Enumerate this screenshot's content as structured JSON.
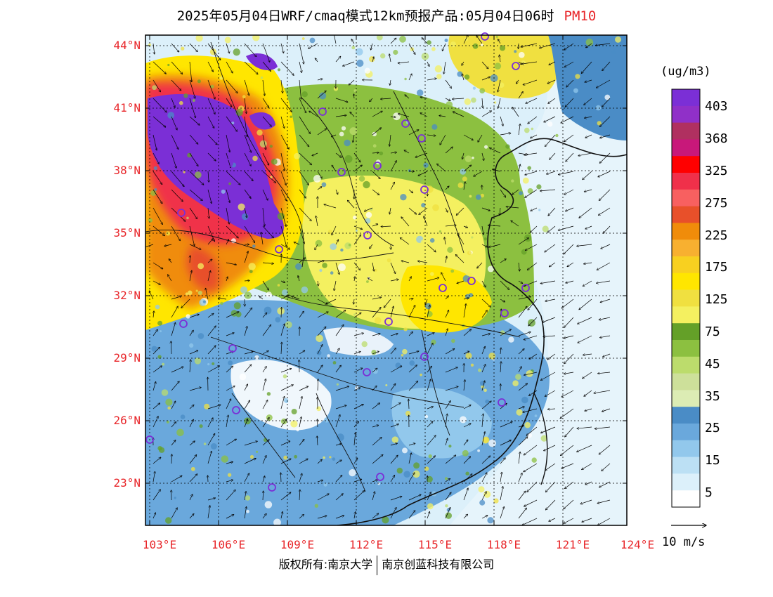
{
  "title": {
    "main": "2025年05月04日WRF/cmaq模式12km预报产品:05月04日06时",
    "pollutant": "PM10"
  },
  "map": {
    "lat_labels": [
      "44°N",
      "41°N",
      "38°N",
      "35°N",
      "32°N",
      "29°N",
      "26°N",
      "23°N"
    ],
    "lon_labels": [
      "103°E",
      "106°E",
      "109°E",
      "112°E",
      "115°E",
      "118°E",
      "121°E",
      "124°E"
    ],
    "label_color": "#e8262a"
  },
  "colorbar": {
    "unit": "(ug/m3)",
    "levels": [
      "403",
      "368",
      "325",
      "275",
      "225",
      "175",
      "125",
      "75",
      "45",
      "35",
      "25",
      "15",
      "5"
    ],
    "colors": [
      "#7b2fd6",
      "#9030c8",
      "#b03060",
      "#c8187a",
      "#ff0000",
      "#f0304a",
      "#f86060",
      "#e8502a",
      "#f08c0a",
      "#f8b030",
      "#f8d020",
      "#ffe600",
      "#f0e040",
      "#f4f060",
      "#64a028",
      "#8cc040",
      "#bcdc6c",
      "#cde09a",
      "#dcecb4",
      "#4a8cc6",
      "#6aa8dc",
      "#92c8ec",
      "#bce0f4",
      "#dcf0fa",
      "#ffffff"
    ]
  },
  "wind": {
    "label": "10 m/s"
  },
  "footer": {
    "left": "版权所有:南京大学",
    "right": "南京创蓝科技有限公司"
  }
}
